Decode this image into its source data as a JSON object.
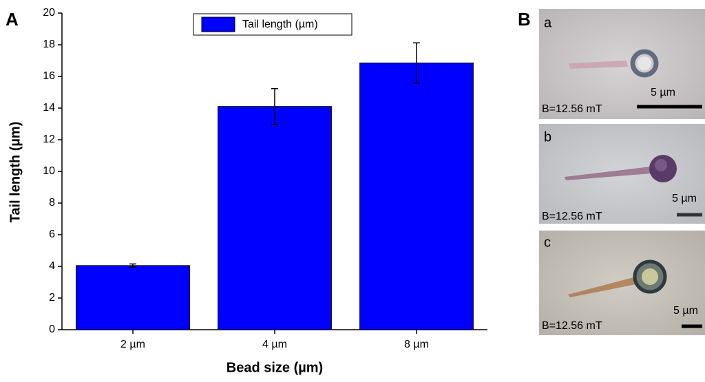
{
  "chart_data": {
    "type": "bar",
    "panel_label": "A",
    "xlabel": "Bead size (µm)",
    "ylabel": "Tail length (µm)",
    "categories": [
      "2 µm",
      "4 µm",
      "8 µm"
    ],
    "series": [
      {
        "name": "Tail length (µm)",
        "color": "#0000ff",
        "values": [
          4.05,
          14.1,
          16.85
        ],
        "errors": [
          0.1,
          1.13,
          1.27
        ]
      }
    ],
    "ylim": [
      0,
      20
    ],
    "yticks": [
      0,
      2,
      4,
      6,
      8,
      10,
      12,
      14,
      16,
      18,
      20
    ],
    "grid": false,
    "legend": "top"
  },
  "panel_b": {
    "label": "B",
    "images": [
      {
        "label": "a",
        "field": "B=12.56 mT",
        "scale": "5 µm"
      },
      {
        "label": "b",
        "field": "B=12.56 mT",
        "scale": "5 µm"
      },
      {
        "label": "c",
        "field": "B=12.56 mT",
        "scale": "5 µm"
      }
    ]
  }
}
